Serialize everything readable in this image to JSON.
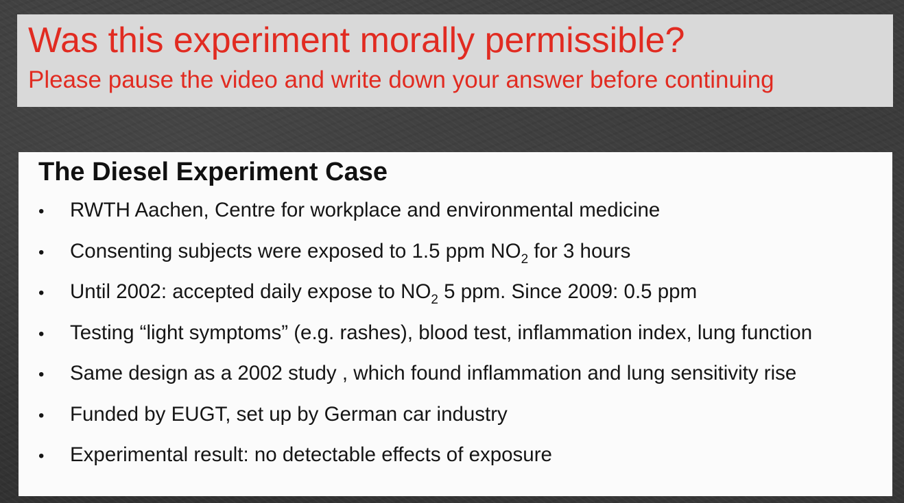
{
  "header": {
    "title": "Was this experiment morally permissible?",
    "subtitle": "Please pause the video and write down your answer before continuing"
  },
  "content": {
    "heading": "The Diesel Experiment Case",
    "bullet_glyph": "•",
    "bullets": [
      {
        "text": "RWTH Aachen, Centre for workplace and environmental medicine"
      },
      {
        "before": "Consenting subjects were exposed to 1.5 ppm NO",
        "sub": "2",
        "after": " for 3 hours"
      },
      {
        "before": "Until 2002: accepted daily expose to NO",
        "sub": "2",
        "after": " 5 ppm. Since 2009: 0.5 ppm"
      },
      {
        "text": "Testing “light symptoms” (e.g. rashes), blood test, inflammation index, lung function"
      },
      {
        "text": "Same design as a 2002 study , which found inflammation and lung sensitivity rise"
      },
      {
        "text": "Funded by EUGT, set up by German car industry"
      },
      {
        "text": "Experimental result: no detectable effects of exposure"
      }
    ]
  },
  "colors": {
    "title_red": "#e12b21",
    "header_bg": "#d9d9d9",
    "content_bg": "#fbfbfb",
    "chalkboard_bg": "#3a3a3a"
  }
}
